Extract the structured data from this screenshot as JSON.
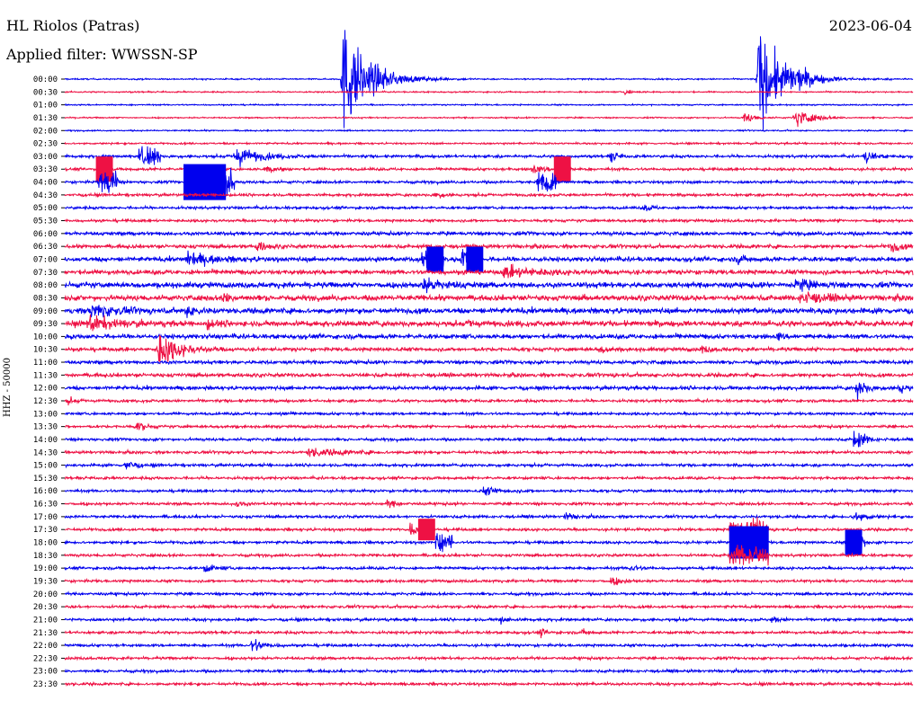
{
  "header": {
    "station": "HL Riolos (Patras)",
    "filter": "Applied filter: WWSSN-SP",
    "date": "2023-06-04"
  },
  "chart_data": {
    "type": "line",
    "title": "HL Riolos (Patras)",
    "subtitle": "Applied filter: WWSSN-SP",
    "date": "2023-06-04",
    "ylabel": "HHZ - 50000",
    "ytick_labels": [
      "00:00",
      "00:30",
      "01:00",
      "01:30",
      "02:00",
      "02:30",
      "03:00",
      "03:30",
      "04:00",
      "04:30",
      "05:00",
      "05:30",
      "06:00",
      "06:30",
      "07:00",
      "07:30",
      "08:00",
      "08:30",
      "09:00",
      "09:30",
      "10:00",
      "10:30",
      "11:00",
      "11:30",
      "12:00",
      "12:30",
      "13:00",
      "13:30",
      "14:00",
      "14:30",
      "15:00",
      "15:30",
      "16:00",
      "16:30",
      "17:00",
      "17:30",
      "18:00",
      "18:30",
      "19:00",
      "19:30",
      "20:00",
      "20:30",
      "21:00",
      "21:30",
      "22:00",
      "22:30",
      "23:00",
      "23:30"
    ],
    "x_minutes_range": [
      0,
      30
    ],
    "line_colors": [
      "#0000ee",
      "#ee1144"
    ],
    "noise_level": [
      1.5,
      1.5,
      1.5,
      1.5,
      1.5,
      2,
      3,
      3,
      3,
      3,
      3,
      3,
      4,
      4,
      5,
      5,
      6,
      6,
      6,
      6,
      5,
      4,
      4,
      4,
      4,
      3,
      3,
      3,
      3,
      3,
      3,
      3,
      3,
      3,
      3,
      3,
      3,
      3,
      3,
      3,
      3,
      3,
      3,
      3,
      3,
      3,
      3,
      3
    ],
    "events": [
      {
        "line": 0,
        "minute": 9.8,
        "amp": 110,
        "duration": 1.8,
        "kind": "quake"
      },
      {
        "line": 0,
        "minute": 24.5,
        "amp": 95,
        "duration": 1.8,
        "kind": "quake"
      },
      {
        "line": 0,
        "minute": 25.7,
        "amp": 14,
        "duration": 0.8,
        "kind": "quake"
      },
      {
        "line": 1,
        "minute": 19.8,
        "amp": 5,
        "duration": 0.6,
        "kind": "quake"
      },
      {
        "line": 3,
        "minute": 25.8,
        "amp": 20,
        "duration": 1.2,
        "kind": "quake"
      },
      {
        "line": 3,
        "minute": 24.0,
        "amp": 12,
        "duration": 0.7,
        "kind": "quake"
      },
      {
        "line": 6,
        "minute": 2.6,
        "amp": 18,
        "duration": 0.8,
        "kind": "burst"
      },
      {
        "line": 6,
        "minute": 6.0,
        "amp": 20,
        "duration": 1.6,
        "kind": "quake"
      },
      {
        "line": 6,
        "minute": 19.3,
        "amp": 14,
        "duration": 0.4,
        "kind": "quake"
      },
      {
        "line": 6,
        "minute": 28.3,
        "amp": 14,
        "duration": 0.6,
        "kind": "quake"
      },
      {
        "line": 7,
        "minute": 7.1,
        "amp": 8,
        "duration": 0.8,
        "kind": "quake"
      },
      {
        "line": 7,
        "minute": 16.5,
        "amp": 9,
        "duration": 0.8,
        "kind": "quake"
      },
      {
        "line": 8,
        "minute": 1.2,
        "amp": 24,
        "duration": 0.7,
        "kind": "burst"
      },
      {
        "line": 8,
        "minute": 16.7,
        "amp": 24,
        "duration": 0.7,
        "kind": "burst"
      },
      {
        "line": 8,
        "minute": 4.5,
        "amp": 30,
        "duration": 1.5,
        "kind": "burst"
      },
      {
        "line": 9,
        "minute": 13.1,
        "amp": 7,
        "duration": 0.5,
        "kind": "quake"
      },
      {
        "line": 10,
        "minute": 20.5,
        "amp": 8,
        "duration": 0.5,
        "kind": "quake"
      },
      {
        "line": 13,
        "minute": 6.8,
        "amp": 12,
        "duration": 0.6,
        "kind": "quake"
      },
      {
        "line": 13,
        "minute": 29.2,
        "amp": 12,
        "duration": 0.6,
        "kind": "quake"
      },
      {
        "line": 14,
        "minute": 12.6,
        "amp": 20,
        "duration": 0.8,
        "kind": "burst"
      },
      {
        "line": 14,
        "minute": 14.0,
        "amp": 20,
        "duration": 0.7,
        "kind": "burst"
      },
      {
        "line": 14,
        "minute": 4.3,
        "amp": 12,
        "duration": 1.8,
        "kind": "quake"
      },
      {
        "line": 14,
        "minute": 23.8,
        "amp": 10,
        "duration": 0.4,
        "kind": "quake"
      },
      {
        "line": 15,
        "minute": 15.5,
        "amp": 10,
        "duration": 2.5,
        "kind": "quake"
      },
      {
        "line": 16,
        "minute": 12.6,
        "amp": 14,
        "duration": 1.5,
        "kind": "quake"
      },
      {
        "line": 16,
        "minute": 25.8,
        "amp": 12,
        "duration": 1.2,
        "kind": "quake"
      },
      {
        "line": 17,
        "minute": 26.0,
        "amp": 12,
        "duration": 1.5,
        "kind": "quake"
      },
      {
        "line": 17,
        "minute": 5.6,
        "amp": 10,
        "duration": 0.6,
        "kind": "quake"
      },
      {
        "line": 18,
        "minute": 0.9,
        "amp": 16,
        "duration": 1.4,
        "kind": "quake"
      },
      {
        "line": 18,
        "minute": 4.3,
        "amp": 12,
        "duration": 0.6,
        "kind": "quake"
      },
      {
        "line": 19,
        "minute": 0.8,
        "amp": 16,
        "duration": 1.5,
        "kind": "quake"
      },
      {
        "line": 19,
        "minute": 5.0,
        "amp": 10,
        "duration": 0.6,
        "kind": "quake"
      },
      {
        "line": 19,
        "minute": 14.3,
        "amp": 8,
        "duration": 0.5,
        "kind": "quake"
      },
      {
        "line": 20,
        "minute": 25.2,
        "amp": 8,
        "duration": 0.4,
        "kind": "quake"
      },
      {
        "line": 21,
        "minute": 3.3,
        "amp": 40,
        "duration": 1.3,
        "kind": "quake"
      },
      {
        "line": 21,
        "minute": 18.9,
        "amp": 8,
        "duration": 0.6,
        "kind": "quake"
      },
      {
        "line": 21,
        "minute": 22.5,
        "amp": 7,
        "duration": 0.6,
        "kind": "quake"
      },
      {
        "line": 24,
        "minute": 28.0,
        "amp": 22,
        "duration": 0.6,
        "kind": "quake"
      },
      {
        "line": 24,
        "minute": 29.5,
        "amp": 12,
        "duration": 0.5,
        "kind": "quake"
      },
      {
        "line": 25,
        "minute": 0.1,
        "amp": 7,
        "duration": 0.4,
        "kind": "quake"
      },
      {
        "line": 26,
        "minute": 7.6,
        "amp": 7,
        "duration": 0.3,
        "kind": "quake"
      },
      {
        "line": 27,
        "minute": 2.5,
        "amp": 10,
        "duration": 0.6,
        "kind": "quake"
      },
      {
        "line": 28,
        "minute": 27.9,
        "amp": 30,
        "duration": 0.6,
        "kind": "quake"
      },
      {
        "line": 29,
        "minute": 8.6,
        "amp": 8,
        "duration": 2.5,
        "kind": "quake"
      },
      {
        "line": 30,
        "minute": 2.1,
        "amp": 12,
        "duration": 0.6,
        "kind": "quake"
      },
      {
        "line": 32,
        "minute": 14.8,
        "amp": 8,
        "duration": 1.0,
        "kind": "quake"
      },
      {
        "line": 33,
        "minute": 6.0,
        "amp": 7,
        "duration": 0.6,
        "kind": "quake"
      },
      {
        "line": 33,
        "minute": 11.4,
        "amp": 8,
        "duration": 0.6,
        "kind": "quake"
      },
      {
        "line": 34,
        "minute": 17.7,
        "amp": 9,
        "duration": 0.5,
        "kind": "quake"
      },
      {
        "line": 34,
        "minute": 27.9,
        "amp": 14,
        "duration": 0.7,
        "kind": "quake"
      },
      {
        "line": 35,
        "minute": 12.2,
        "amp": 12,
        "duration": 0.6,
        "kind": "burst"
      },
      {
        "line": 35,
        "minute": 23.5,
        "amp": 18,
        "duration": 1.4,
        "kind": "burst"
      },
      {
        "line": 36,
        "minute": 13.1,
        "amp": 18,
        "duration": 0.6,
        "kind": "burst"
      },
      {
        "line": 36,
        "minute": 27.6,
        "amp": 18,
        "duration": 0.7,
        "kind": "burst"
      },
      {
        "line": 37,
        "minute": 23.5,
        "amp": 18,
        "duration": 1.4,
        "kind": "burst"
      },
      {
        "line": 38,
        "minute": 20.0,
        "amp": 8,
        "duration": 0.6,
        "kind": "quake"
      },
      {
        "line": 38,
        "minute": 4.9,
        "amp": 8,
        "duration": 0.8,
        "kind": "quake"
      },
      {
        "line": 39,
        "minute": 19.3,
        "amp": 9,
        "duration": 0.7,
        "kind": "quake"
      },
      {
        "line": 42,
        "minute": 15.4,
        "amp": 8,
        "duration": 0.5,
        "kind": "quake"
      },
      {
        "line": 42,
        "minute": 25.0,
        "amp": 7,
        "duration": 0.5,
        "kind": "quake"
      },
      {
        "line": 43,
        "minute": 16.8,
        "amp": 8,
        "duration": 0.4,
        "kind": "quake"
      },
      {
        "line": 43,
        "minute": 18.3,
        "amp": 6,
        "duration": 0.4,
        "kind": "quake"
      },
      {
        "line": 44,
        "minute": 6.6,
        "amp": 16,
        "duration": 0.8,
        "kind": "quake"
      }
    ],
    "blocks": [
      {
        "line": 7,
        "minute": 1.1,
        "width": 0.6,
        "amp": 14,
        "rows": 2
      },
      {
        "line": 7,
        "minute": 17.3,
        "width": 0.6,
        "amp": 14,
        "rows": 2
      },
      {
        "line": 8,
        "minute": 4.2,
        "width": 1.5,
        "amp": 20,
        "rows": 2
      },
      {
        "line": 14,
        "minute": 12.8,
        "width": 0.6,
        "amp": 14,
        "rows": 2
      },
      {
        "line": 14,
        "minute": 14.2,
        "width": 0.6,
        "amp": 14,
        "rows": 2
      },
      {
        "line": 35,
        "minute": 12.5,
        "width": 0.6,
        "amp": 12,
        "rows": 2
      },
      {
        "line": 36,
        "minute": 23.5,
        "width": 1.4,
        "amp": 18,
        "rows": 2
      },
      {
        "line": 36,
        "minute": 27.6,
        "width": 0.6,
        "amp": 14,
        "rows": 2
      }
    ]
  }
}
